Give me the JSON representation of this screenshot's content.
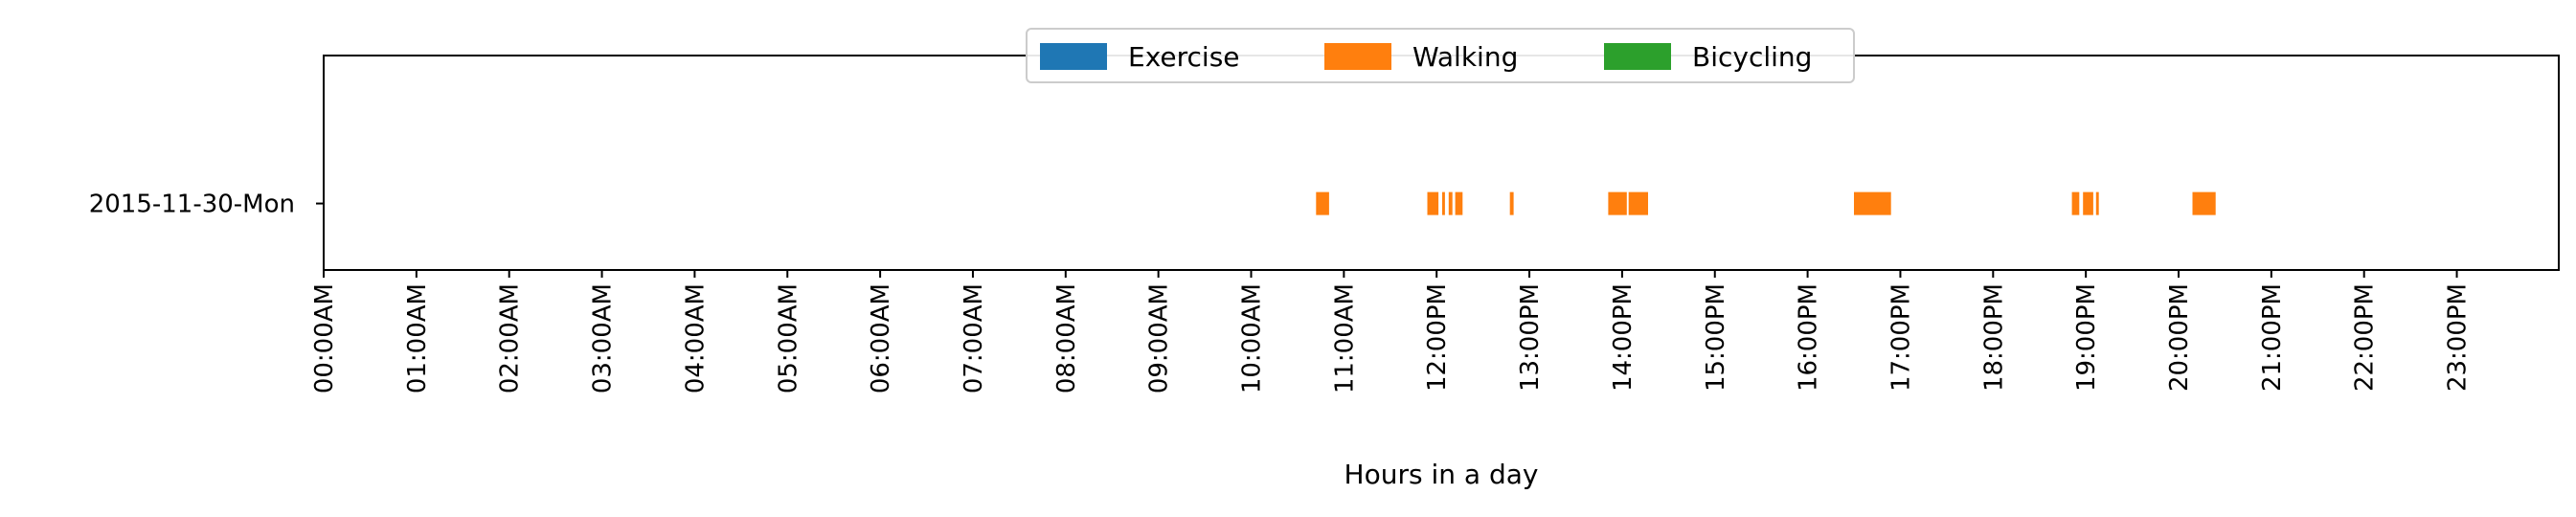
{
  "chart_data": {
    "type": "broken_barh",
    "xlabel": "Hours in a day",
    "ylabel": "",
    "xlim": [
      0,
      24
    ],
    "x_ticks": [
      "00:00AM",
      "01:00AM",
      "02:00AM",
      "03:00AM",
      "04:00AM",
      "05:00AM",
      "06:00AM",
      "07:00AM",
      "08:00AM",
      "09:00AM",
      "10:00AM",
      "11:00AM",
      "12:00PM",
      "13:00PM",
      "14:00PM",
      "15:00PM",
      "16:00PM",
      "17:00PM",
      "18:00PM",
      "19:00PM",
      "20:00PM",
      "21:00PM",
      "22:00PM",
      "23:00PM"
    ],
    "categories": [
      "2015-11-30-Mon"
    ],
    "legend": {
      "placement": "upper-center",
      "entries": [
        {
          "label": "Exercise",
          "color": "#1f77b4"
        },
        {
          "label": "Walking",
          "color": "#ff7f0e"
        },
        {
          "label": "Bicycling",
          "color": "#2ca02c"
        }
      ]
    },
    "series": [
      {
        "name": "Walking",
        "color": "#ff7f0e",
        "category": "2015-11-30-Mon",
        "intervals": [
          [
            10.7,
            10.84
          ],
          [
            11.9,
            12.02
          ],
          [
            12.06,
            12.09
          ],
          [
            12.13,
            12.17
          ],
          [
            12.2,
            12.28
          ],
          [
            12.79,
            12.83
          ],
          [
            13.85,
            14.05
          ],
          [
            14.07,
            14.28
          ],
          [
            16.5,
            16.9
          ],
          [
            18.85,
            18.93
          ],
          [
            18.97,
            19.08
          ],
          [
            19.11,
            19.14
          ],
          [
            20.15,
            20.4
          ]
        ]
      }
    ]
  }
}
